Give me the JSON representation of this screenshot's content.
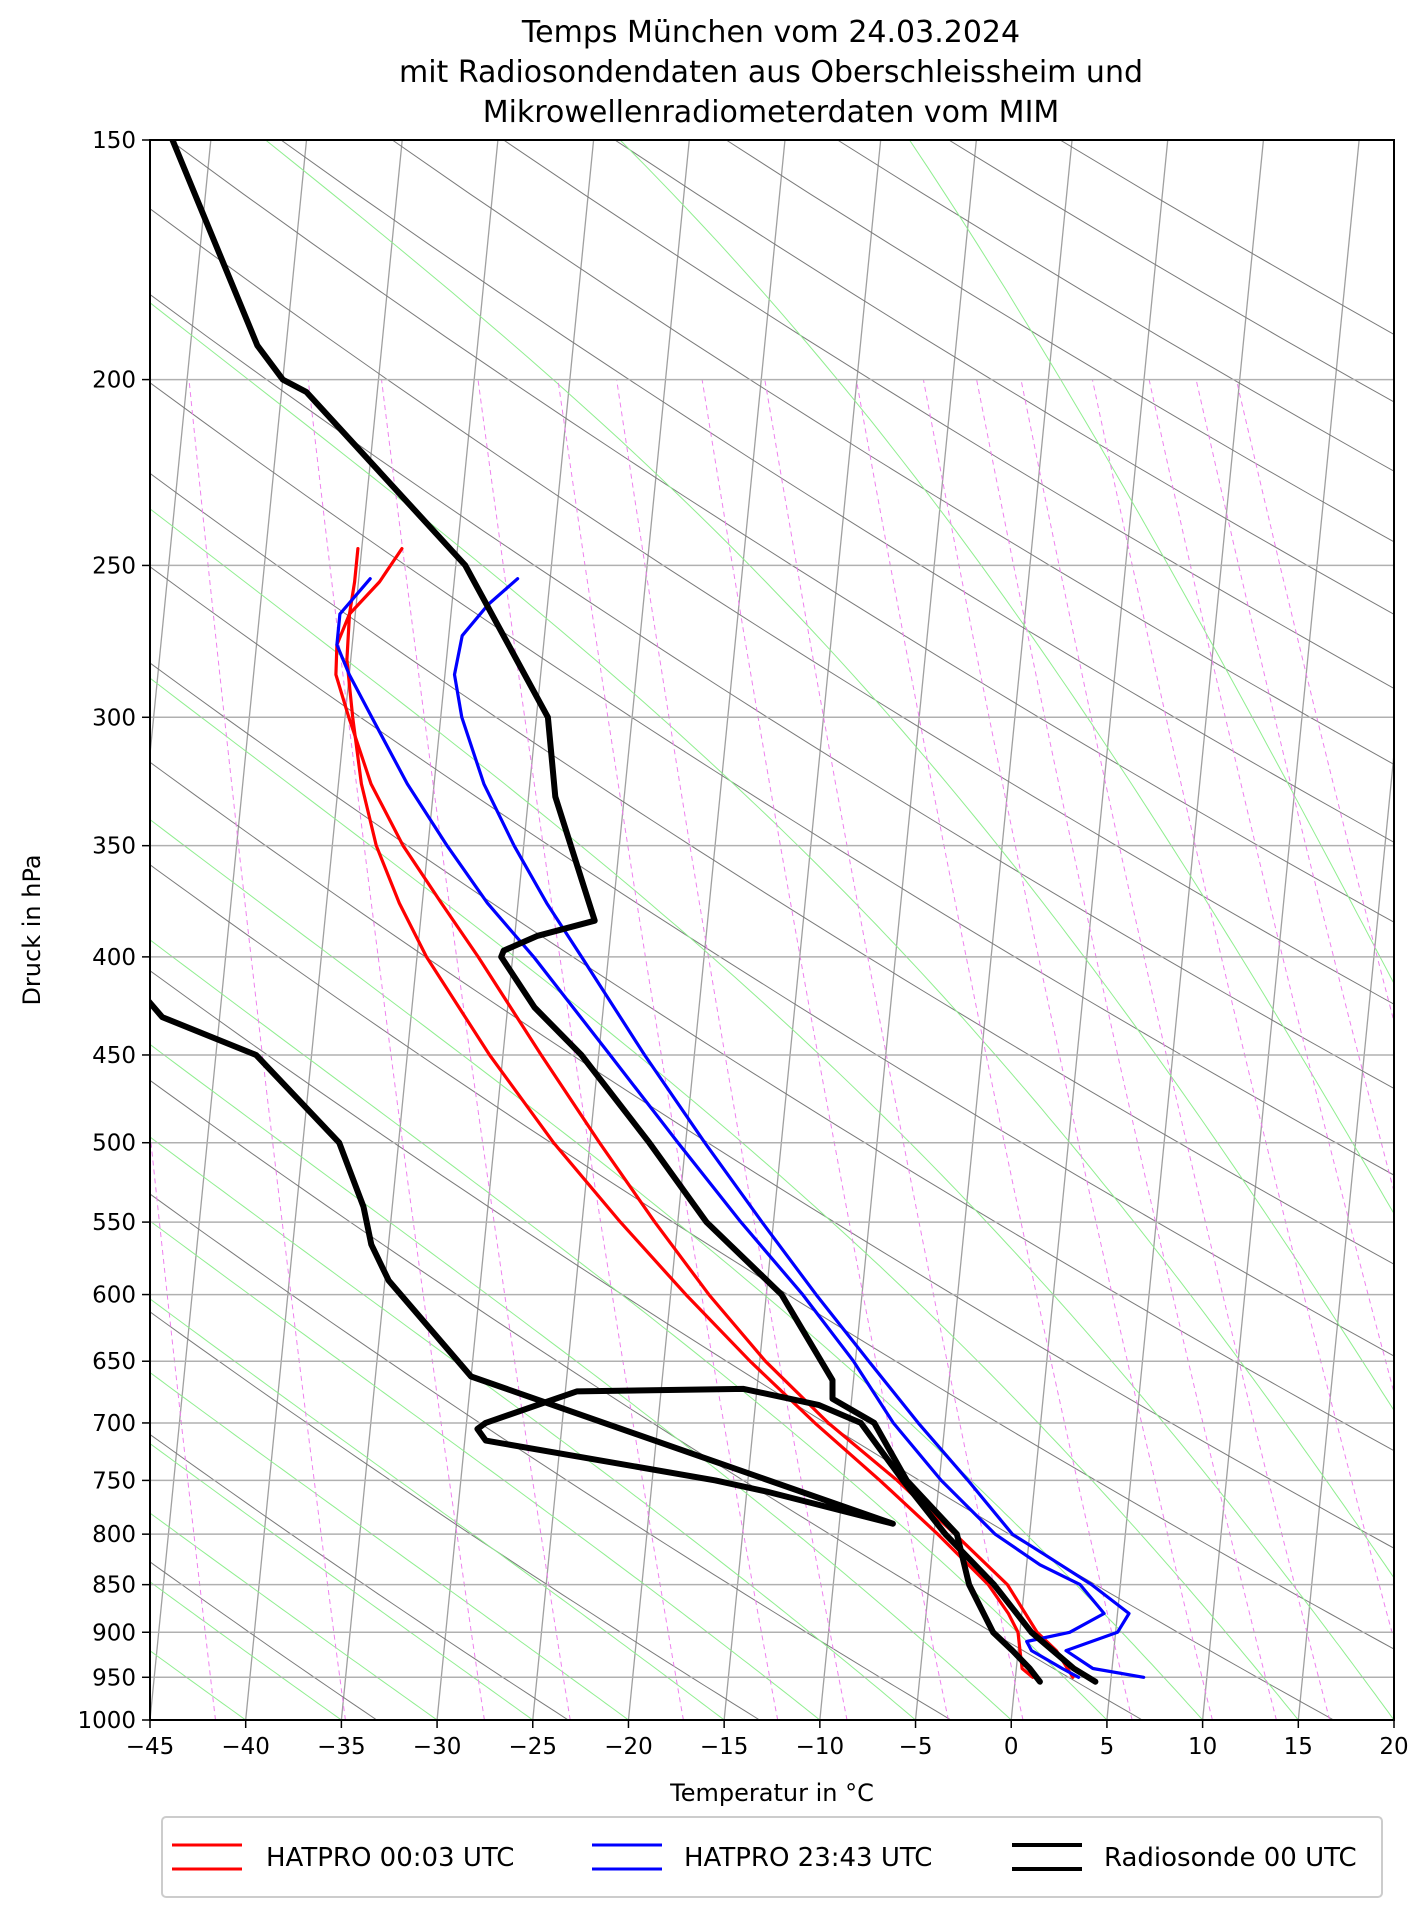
{
  "chart_data": {
    "type": "line",
    "subtype": "skew-T log-p diagram",
    "title_lines": [
      "Temps München vom 24.03.2024",
      "mit Radiosondendaten aus Oberschleissheim und",
      "Mikrowellenradiometerdaten vom MIM"
    ],
    "xlabel": "Temperatur in °C",
    "ylabel": "Druck in hPa",
    "xlim": [
      -45,
      20
    ],
    "ylim": [
      1000,
      150
    ],
    "yscale": "log",
    "x_ticks": [
      -45,
      -40,
      -35,
      -30,
      -25,
      -20,
      -15,
      -10,
      -5,
      0,
      5,
      10,
      15,
      20
    ],
    "x_tick_labels": [
      "−45",
      "−40",
      "−35",
      "−30",
      "−25",
      "−20",
      "−15",
      "−10",
      "−5",
      "0",
      "5",
      "10",
      "15",
      "20"
    ],
    "y_ticks": [
      1000,
      950,
      900,
      850,
      800,
      750,
      700,
      650,
      600,
      550,
      500,
      450,
      400,
      350,
      300,
      250,
      200,
      150
    ],
    "y_tick_labels": [
      "1000",
      "950",
      "900",
      "850",
      "800",
      "750",
      "700",
      "650",
      "600",
      "550",
      "500",
      "450",
      "400",
      "350",
      "300",
      "250",
      "200",
      "150"
    ],
    "grid": true,
    "legend_position": "bottom",
    "colors": {
      "hatpro_0003": "#ff0000",
      "hatpro_2343": "#0000ff",
      "radiosonde": "#000000",
      "isotherm": "#a0a0a0",
      "dry_adiabat": "#7a7a7a",
      "moist_adiabat": "#90ee90",
      "mixing_ratio": "#ee82ee",
      "pressure_grid": "#b0b0b0"
    },
    "series": [
      {
        "name": "HATPRO 00:03 UTC",
        "color": "#ff0000",
        "style": "temperature",
        "points": [
          [
            0.9,
            950
          ],
          [
            0.3,
            940
          ],
          [
            0.1,
            920
          ],
          [
            -0.1,
            900
          ],
          [
            -0.7,
            880
          ],
          [
            -1.9,
            850
          ],
          [
            -4.8,
            800
          ],
          [
            -8.1,
            750
          ],
          [
            -11.8,
            700
          ],
          [
            -15.5,
            650
          ],
          [
            -19.2,
            600
          ],
          [
            -23.0,
            550
          ],
          [
            -26.9,
            500
          ],
          [
            -30.7,
            450
          ],
          [
            -34.5,
            400
          ],
          [
            -36.2,
            375
          ],
          [
            -37.7,
            350
          ],
          [
            -38.8,
            325
          ],
          [
            -39.6,
            300
          ],
          [
            -40.2,
            280
          ],
          [
            -40.3,
            265
          ],
          [
            -40.2,
            255
          ],
          [
            -40.2,
            245
          ]
        ]
      },
      {
        "name": "",
        "color": "#ff0000",
        "style": "dewpoint",
        "points": [
          [
            3.0,
            950
          ],
          [
            2.0,
            920
          ],
          [
            0.9,
            900
          ],
          [
            -0.9,
            850
          ],
          [
            -3.9,
            800
          ],
          [
            -7.2,
            750
          ],
          [
            -11.1,
            700
          ],
          [
            -14.7,
            650
          ],
          [
            -18.0,
            600
          ],
          [
            -21.2,
            550
          ],
          [
            -24.5,
            500
          ],
          [
            -28.0,
            450
          ],
          [
            -31.8,
            400
          ],
          [
            -34.0,
            375
          ],
          [
            -36.3,
            350
          ],
          [
            -38.3,
            325
          ],
          [
            -39.8,
            300
          ],
          [
            -40.7,
            285
          ],
          [
            -40.8,
            275
          ],
          [
            -40.3,
            265
          ],
          [
            -38.9,
            255
          ],
          [
            -37.9,
            245
          ]
        ]
      },
      {
        "name": "HATPRO 23:43 UTC",
        "color": "#0000ff",
        "style": "temperature",
        "points": [
          [
            3.3,
            950
          ],
          [
            2.4,
            940
          ],
          [
            0.7,
            920
          ],
          [
            0.4,
            910
          ],
          [
            2.6,
            900
          ],
          [
            4.3,
            880
          ],
          [
            2.9,
            850
          ],
          [
            0.7,
            830
          ],
          [
            -1.8,
            800
          ],
          [
            -4.9,
            750
          ],
          [
            -7.7,
            700
          ],
          [
            -10.1,
            650
          ],
          [
            -13.1,
            600
          ],
          [
            -16.7,
            550
          ],
          [
            -20.4,
            500
          ],
          [
            -24.4,
            450
          ],
          [
            -28.9,
            400
          ],
          [
            -31.6,
            375
          ],
          [
            -34.0,
            350
          ],
          [
            -36.4,
            325
          ],
          [
            -38.6,
            300
          ],
          [
            -40.0,
            285
          ],
          [
            -40.8,
            275
          ],
          [
            -40.8,
            265
          ],
          [
            -39.4,
            254
          ]
        ]
      },
      {
        "name": "",
        "color": "#0000ff",
        "style": "dewpoint",
        "points": [
          [
            6.7,
            950
          ],
          [
            4.0,
            940
          ],
          [
            2.5,
            920
          ],
          [
            5.1,
            900
          ],
          [
            5.6,
            880
          ],
          [
            3.5,
            850
          ],
          [
            0.9,
            820
          ],
          [
            -0.9,
            800
          ],
          [
            -3.5,
            750
          ],
          [
            -6.4,
            700
          ],
          [
            -9.3,
            650
          ],
          [
            -12.4,
            600
          ],
          [
            -15.6,
            550
          ],
          [
            -19.0,
            500
          ],
          [
            -22.6,
            450
          ],
          [
            -26.4,
            400
          ],
          [
            -28.5,
            375
          ],
          [
            -30.5,
            350
          ],
          [
            -32.4,
            325
          ],
          [
            -33.9,
            300
          ],
          [
            -34.5,
            285
          ],
          [
            -34.3,
            272
          ],
          [
            -33.1,
            262
          ],
          [
            -31.7,
            254
          ]
        ]
      },
      {
        "name": "Radiosonde 00 UTC",
        "color": "#000000",
        "style": "temperature",
        "points": [
          [
            1.3,
            955
          ],
          [
            0.7,
            940
          ],
          [
            -0.3,
            920
          ],
          [
            -1.4,
            900
          ],
          [
            -2.9,
            850
          ],
          [
            -3.8,
            800
          ],
          [
            -6.7,
            750
          ],
          [
            -8.7,
            700
          ],
          [
            -11.0,
            680
          ],
          [
            -11.1,
            665
          ],
          [
            -14.2,
            600
          ],
          [
            -18.5,
            550
          ],
          [
            -21.9,
            500
          ],
          [
            -25.9,
            450
          ],
          [
            -28.6,
            425
          ],
          [
            -30.6,
            400
          ],
          [
            -30.5,
            397
          ],
          [
            -28.8,
            390
          ],
          [
            -25.9,
            383
          ],
          [
            -28.6,
            330
          ],
          [
            -29.4,
            300
          ],
          [
            -34.5,
            250
          ],
          [
            -43.7,
            203
          ],
          [
            -45.0,
            200
          ],
          [
            -46.5,
            192
          ],
          [
            -52.0,
            150
          ]
        ]
      },
      {
        "name": "",
        "color": "#000000",
        "style": "dewpoint",
        "points": [
          [
            4.2,
            955
          ],
          [
            3.0,
            940
          ],
          [
            0.6,
            900
          ],
          [
            -1.6,
            850
          ],
          [
            -4.4,
            800
          ],
          [
            -6.9,
            750
          ],
          [
            -9.4,
            700
          ],
          [
            -11.7,
            685
          ],
          [
            -15.7,
            672
          ],
          [
            -24.4,
            674
          ],
          [
            -29.0,
            700
          ],
          [
            -29.4,
            705
          ],
          [
            -28.9,
            715
          ],
          [
            -16.7,
            750
          ],
          [
            -14.0,
            760
          ],
          [
            -7.2,
            790
          ],
          [
            -30.0,
            662
          ],
          [
            -34.8,
            590
          ],
          [
            -35.9,
            565
          ],
          [
            -36.5,
            540
          ],
          [
            -38.1,
            500
          ],
          [
            -42.9,
            450
          ],
          [
            -48.0,
            430
          ],
          [
            -51.0,
            400
          ],
          [
            -65.0,
            395
          ]
        ]
      }
    ],
    "reference_lines": {
      "isotherms_step": 5,
      "dry_adiabats": "potential temperature every 10 K",
      "moist_adiabats": "saturated adiabats",
      "mixing_ratio_lines": "dashed"
    },
    "legend": [
      "HATPRO 00:03 UTC",
      "HATPRO 23:43 UTC",
      "Radiosonde 00 UTC"
    ]
  }
}
